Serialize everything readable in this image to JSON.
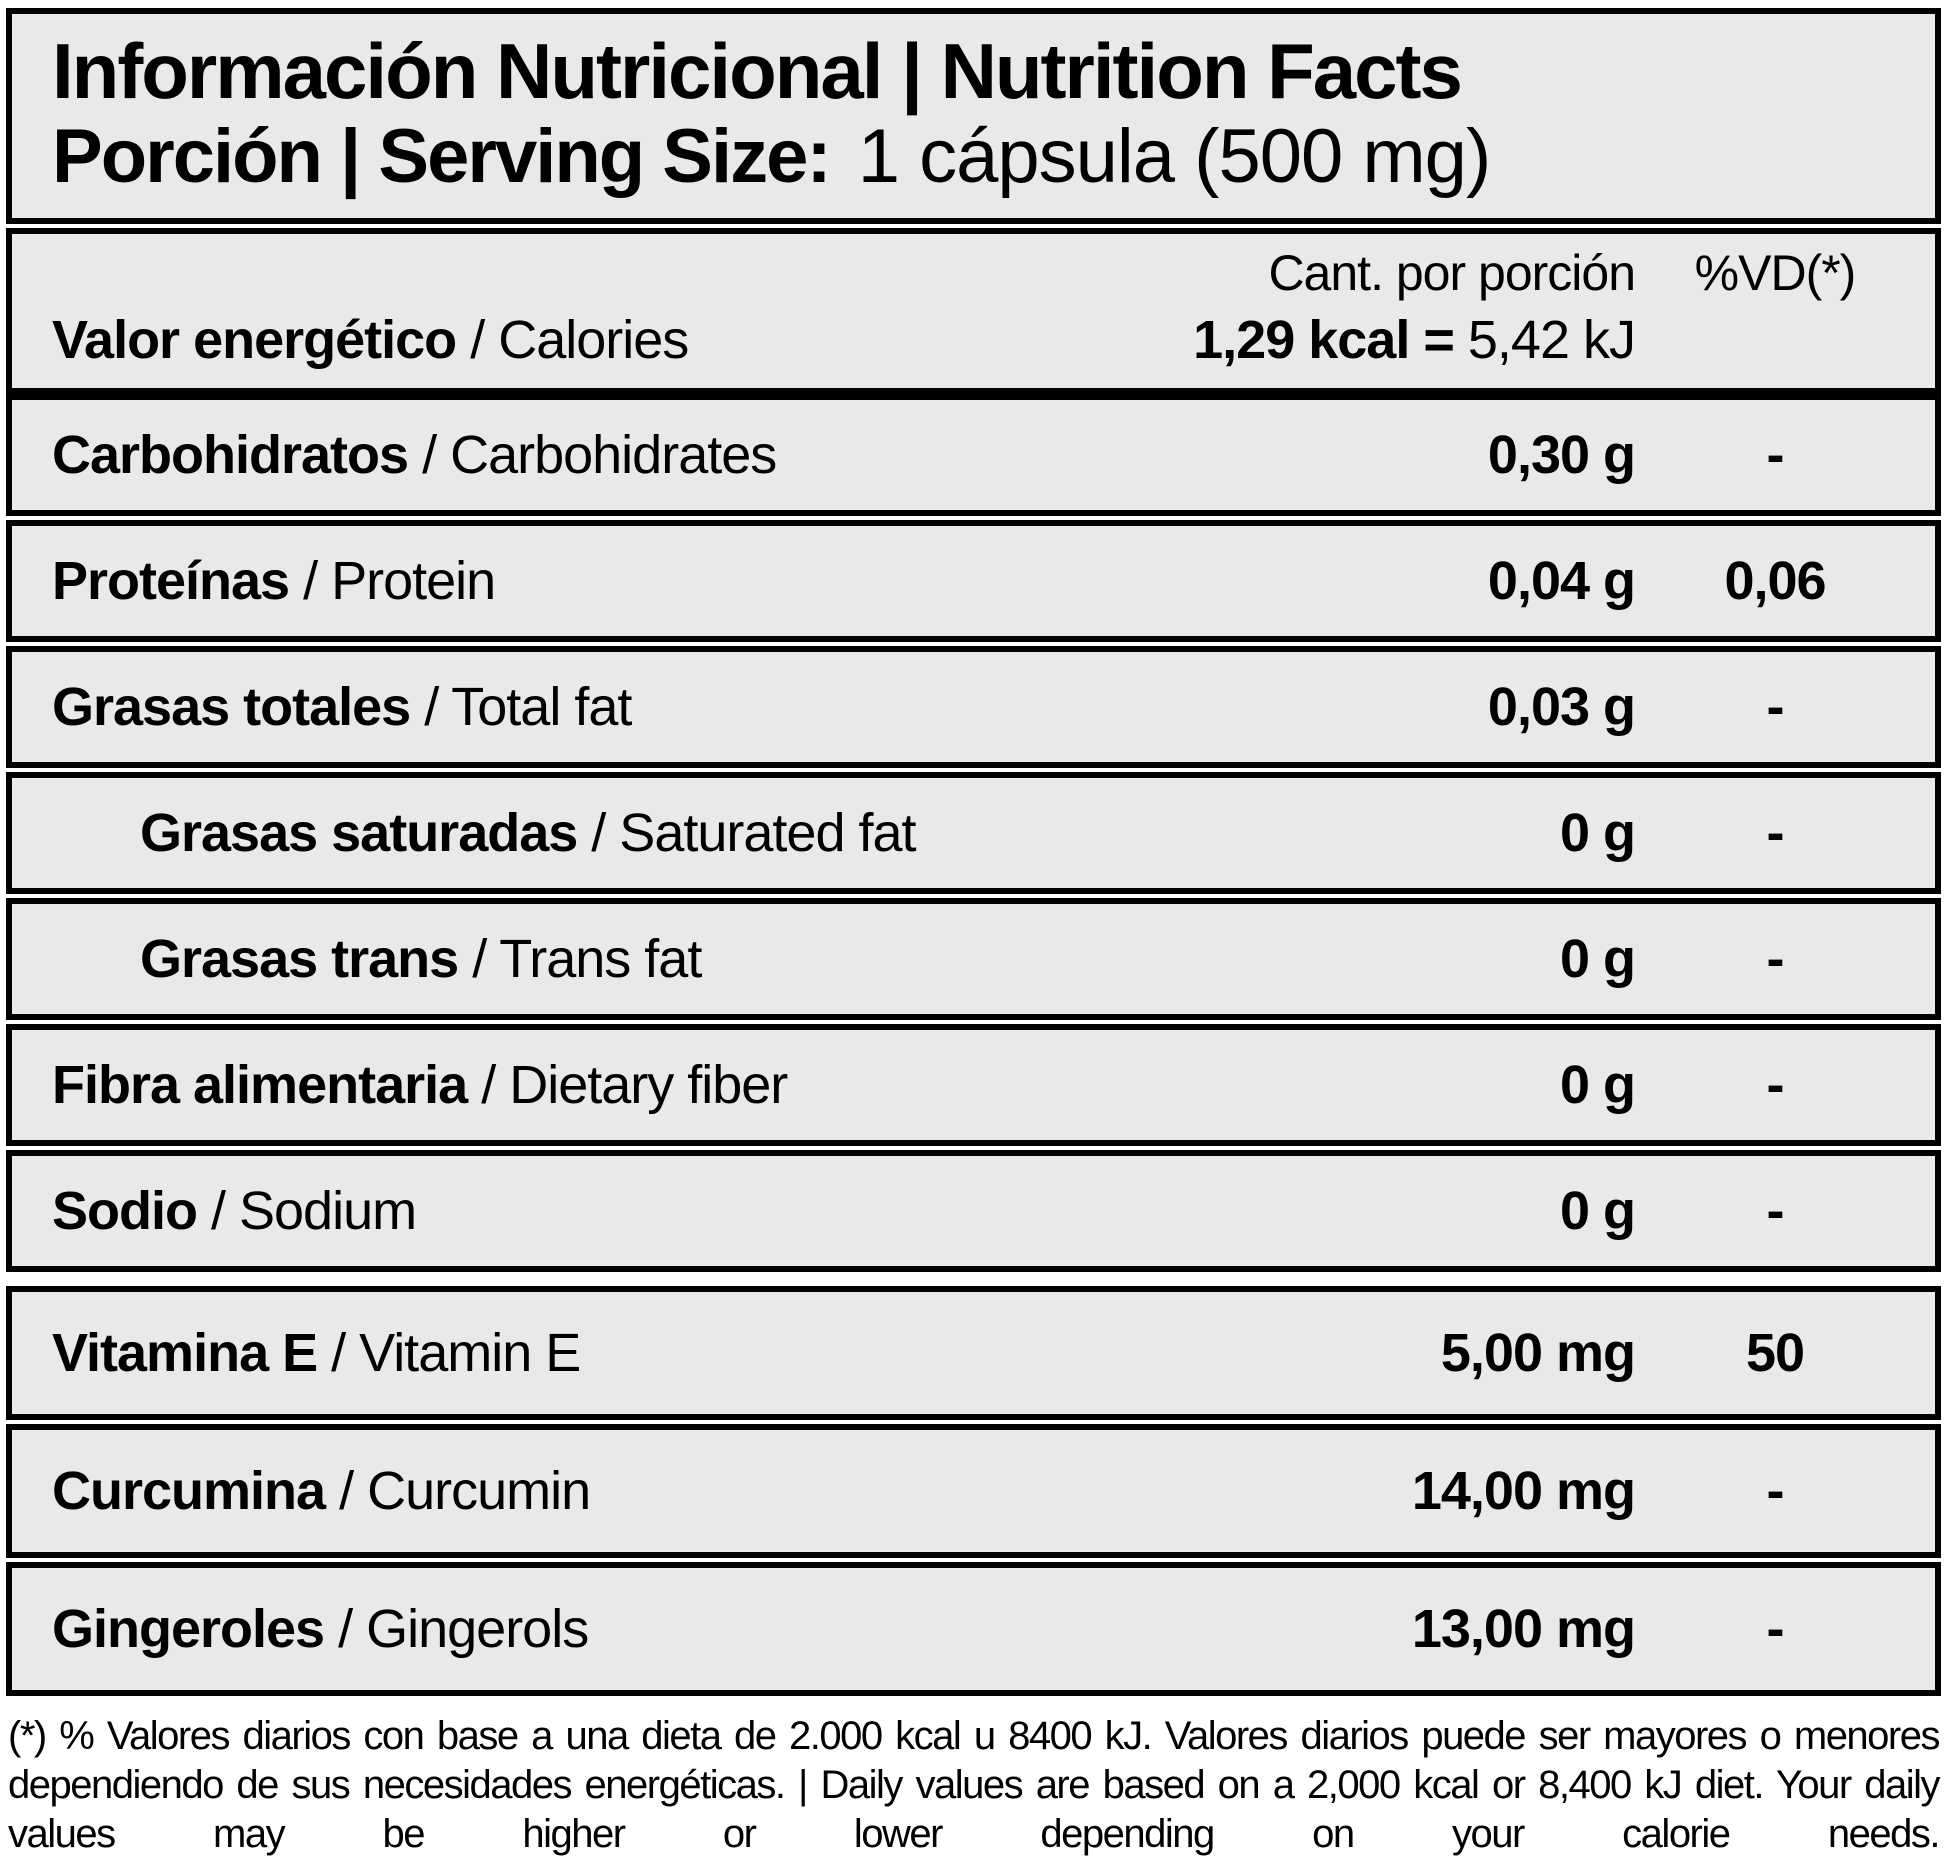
{
  "header": {
    "title": "Información Nutricional | Nutrition Facts",
    "serving_label": "Porción | Serving Size:",
    "serving_value": "1 cápsula (500 mg)"
  },
  "columns": {
    "amount": "Cant. por porción",
    "daily_value": "%VD(*)"
  },
  "energy": {
    "label_es": "Valor energético",
    "label_en": "/ Calories",
    "value_bold": "1,29 kcal =",
    "value_regular": "5,42 kJ"
  },
  "rows": [
    {
      "label_es": "Carbohidratos",
      "label_en": "/ Carbohidrates",
      "amount": "0,30 g",
      "dv": "-",
      "indent": false,
      "section_break": false,
      "tall": false
    },
    {
      "label_es": "Proteínas",
      "label_en": "/ Protein",
      "amount": "0,04 g",
      "dv": "0,06",
      "indent": false,
      "section_break": false,
      "tall": false
    },
    {
      "label_es": "Grasas totales",
      "label_en": "/ Total fat",
      "amount": "0,03 g",
      "dv": "-",
      "indent": false,
      "section_break": false,
      "tall": false
    },
    {
      "label_es": "Grasas saturadas",
      "label_en": "/ Saturated fat",
      "amount": "0 g",
      "dv": "-",
      "indent": true,
      "section_break": false,
      "tall": false
    },
    {
      "label_es": "Grasas trans",
      "label_en": "/ Trans fat",
      "amount": "0 g",
      "dv": "-",
      "indent": true,
      "section_break": false,
      "tall": false
    },
    {
      "label_es": "Fibra alimentaria",
      "label_en": "/ Dietary fiber",
      "amount": "0 g",
      "dv": "-",
      "indent": false,
      "section_break": false,
      "tall": false
    },
    {
      "label_es": "Sodio",
      "label_en": "/ Sodium",
      "amount": "0 g",
      "dv": "-",
      "indent": false,
      "section_break": false,
      "tall": false
    },
    {
      "label_es": "Vitamina E",
      "label_en": "/ Vitamin E",
      "amount": "5,00 mg",
      "dv": "50",
      "indent": false,
      "section_break": true,
      "tall": true
    },
    {
      "label_es": "Curcumina",
      "label_en": "/ Curcumin",
      "amount": "14,00 mg",
      "dv": "-",
      "indent": false,
      "section_break": false,
      "tall": true
    },
    {
      "label_es": "Gingeroles",
      "label_en": "/ Gingerols",
      "amount": "13,00 mg",
      "dv": "-",
      "indent": false,
      "section_break": false,
      "tall": true
    }
  ],
  "footnote": "(*) % Valores diarios con base a una dieta de 2.000 kcal u 8400 kJ. Valores diarios puede ser mayores o menores dependiendo de sus necesidades energéticas. | Daily values are based on a 2,000 kcal or 8,400 kJ diet. Your daily values may be higher or lower depending on your calorie needs."
}
